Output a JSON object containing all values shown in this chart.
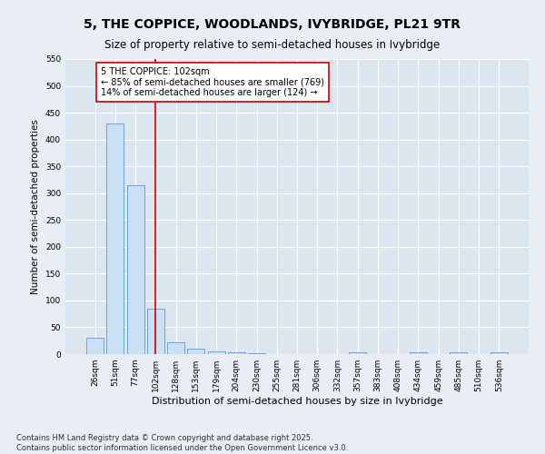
{
  "title": "5, THE COPPICE, WOODLANDS, IVYBRIDGE, PL21 9TR",
  "subtitle": "Size of property relative to semi-detached houses in Ivybridge",
  "xlabel": "Distribution of semi-detached houses by size in Ivybridge",
  "ylabel": "Number of semi-detached properties",
  "categories": [
    "26sqm",
    "51sqm",
    "77sqm",
    "102sqm",
    "128sqm",
    "153sqm",
    "179sqm",
    "204sqm",
    "230sqm",
    "255sqm",
    "281sqm",
    "306sqm",
    "332sqm",
    "357sqm",
    "383sqm",
    "408sqm",
    "434sqm",
    "459sqm",
    "485sqm",
    "510sqm",
    "536sqm"
  ],
  "values": [
    30,
    430,
    315,
    85,
    22,
    10,
    5,
    4,
    1,
    0,
    0,
    0,
    0,
    3,
    0,
    0,
    3,
    0,
    3,
    0,
    4
  ],
  "bar_color": "#cce0f5",
  "bar_edge_color": "#5b9bd5",
  "red_line_index": 3,
  "red_line_label": "5 THE COPPICE: 102sqm",
  "annotation_line1": "← 85% of semi-detached houses are smaller (769)",
  "annotation_line2": "14% of semi-detached houses are larger (124) →",
  "ylim": [
    0,
    550
  ],
  "yticks": [
    0,
    50,
    100,
    150,
    200,
    250,
    300,
    350,
    400,
    450,
    500,
    550
  ],
  "background_color": "#e8eef4",
  "plot_bg_color": "#dce6f0",
  "grid_color": "#ffffff",
  "footer_line1": "Contains HM Land Registry data © Crown copyright and database right 2025.",
  "footer_line2": "Contains public sector information licensed under the Open Government Licence v3.0.",
  "annotation_box_color": "#ffffff",
  "annotation_box_edge": "#cc0000",
  "red_line_color": "#cc0000",
  "title_fontsize": 10,
  "subtitle_fontsize": 8.5,
  "tick_fontsize": 6.5,
  "ylabel_fontsize": 7.5,
  "xlabel_fontsize": 8,
  "annotation_fontsize": 7,
  "footer_fontsize": 6
}
